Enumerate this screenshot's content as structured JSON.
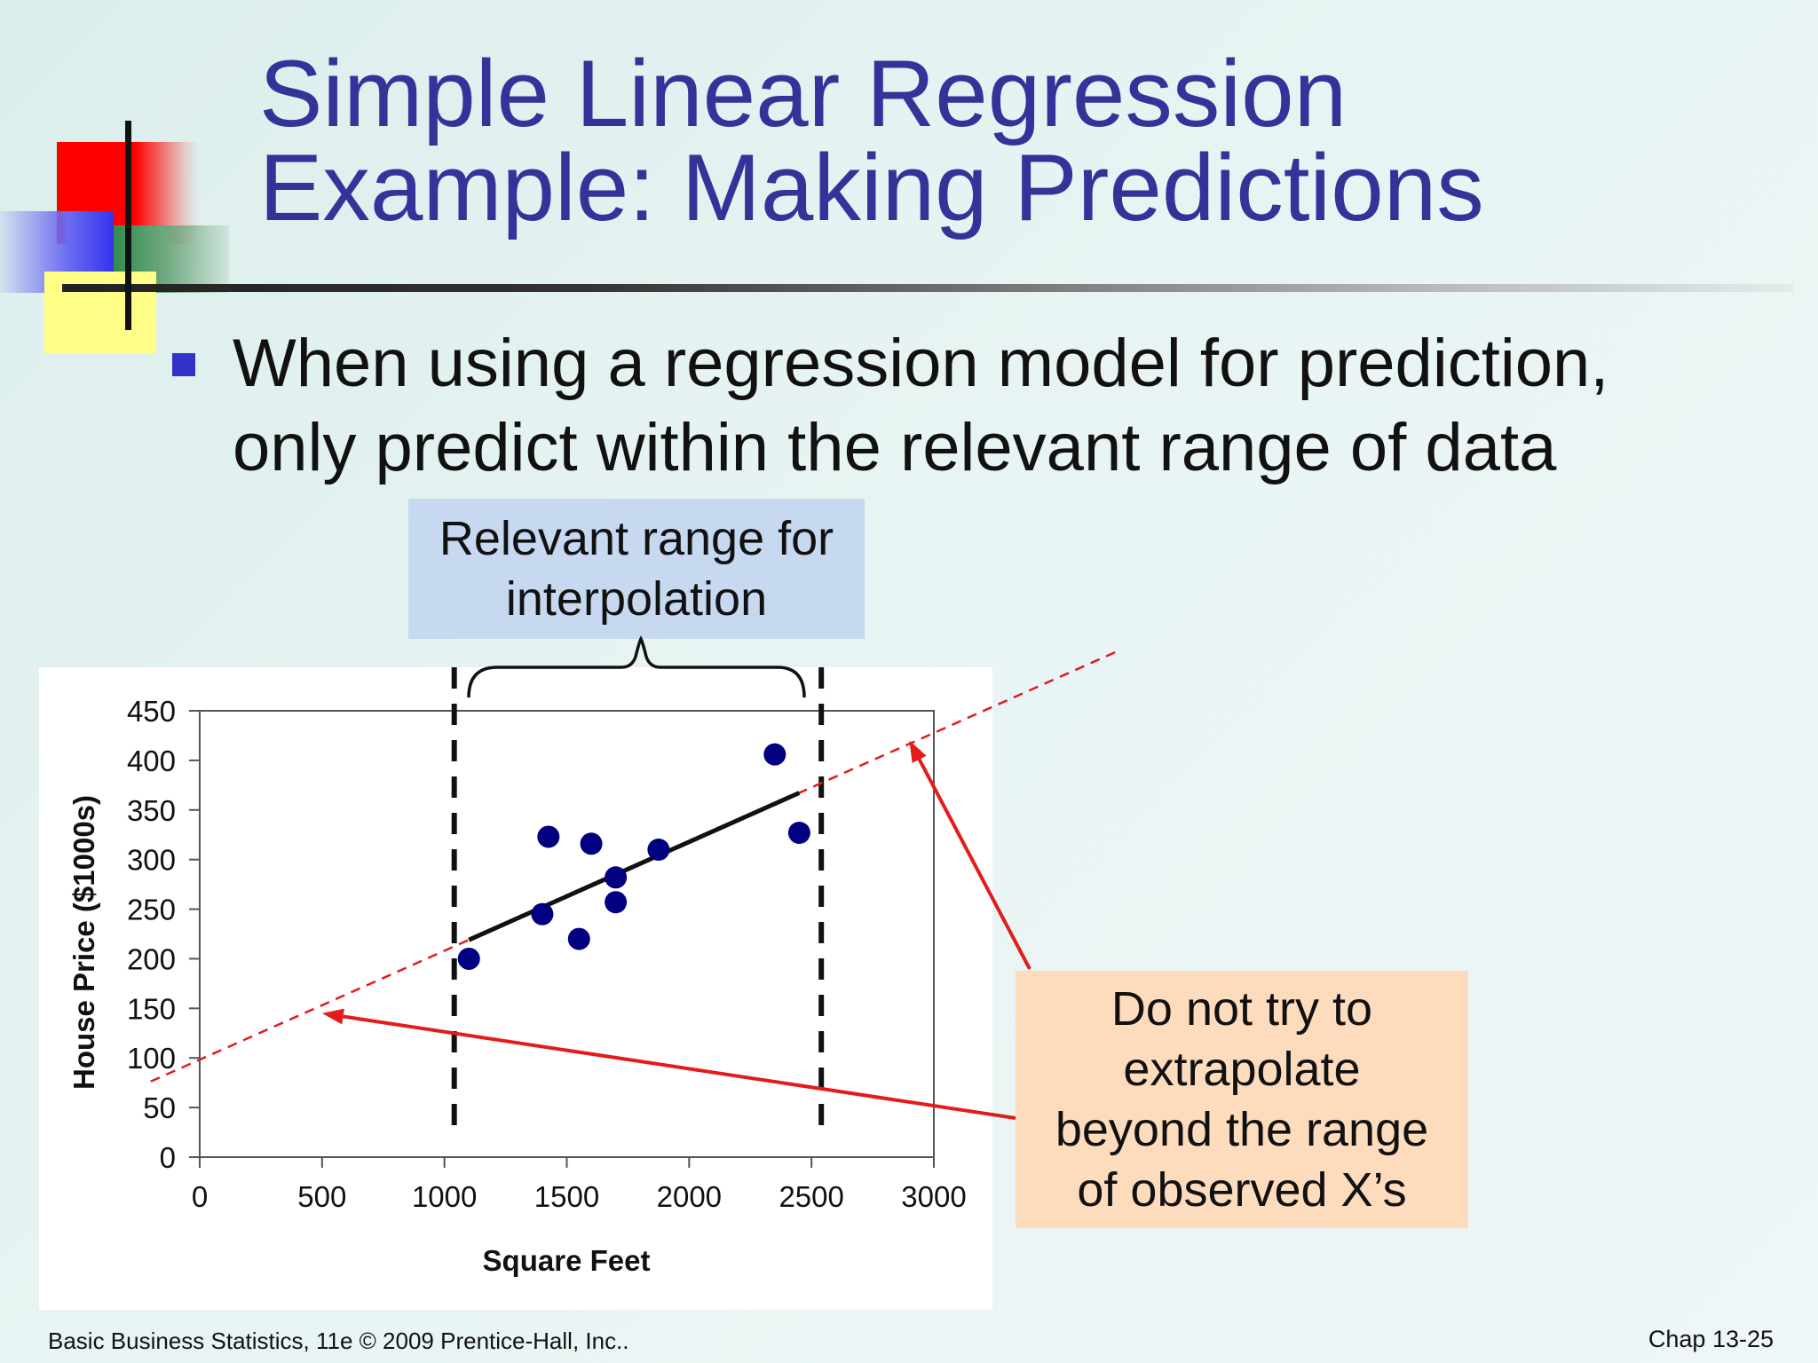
{
  "slide": {
    "title_line1": "Simple Linear Regression",
    "title_line2": "Example:  Making Predictions",
    "bullet_line1": "When using a regression model for prediction,",
    "bullet_line2": "only predict within the relevant range of data",
    "footer_left": "Basic Business Statistics, 11e © 2009 Prentice-Hall, Inc..",
    "footer_right": "Chap 13-25"
  },
  "callouts": {
    "relevant_range_line1": "Relevant range for",
    "relevant_range_line2": "interpolation",
    "extrapolate_line1": "Do not try to",
    "extrapolate_line2": "extrapolate",
    "extrapolate_line3": "beyond the range",
    "extrapolate_line4": "of observed X’s"
  },
  "colors": {
    "title": "#333399",
    "points": "#000080",
    "arrow": "#e31b1b",
    "dashed_extension": "#e31b1b",
    "range_box": "#c6d9f1",
    "warn_box": "#fcdcbc"
  },
  "chart_data": {
    "type": "scatter",
    "xlabel": "Square Feet",
    "ylabel": "House Price ($1000s)",
    "xlim": [
      0,
      3000
    ],
    "ylim": [
      0,
      450
    ],
    "xticks": [
      0,
      500,
      1000,
      1500,
      2000,
      2500,
      3000
    ],
    "yticks": [
      0,
      50,
      100,
      150,
      200,
      250,
      300,
      350,
      400,
      450
    ],
    "points": [
      {
        "x": 1100,
        "y": 200
      },
      {
        "x": 1400,
        "y": 245
      },
      {
        "x": 1425,
        "y": 323
      },
      {
        "x": 1550,
        "y": 220
      },
      {
        "x": 1600,
        "y": 316
      },
      {
        "x": 1700,
        "y": 282
      },
      {
        "x": 1700,
        "y": 257
      },
      {
        "x": 1875,
        "y": 310
      },
      {
        "x": 2350,
        "y": 406
      },
      {
        "x": 2450,
        "y": 327
      }
    ],
    "regression": {
      "intercept": 98.25,
      "slope": 0.1098
    },
    "regression_solid_x": [
      1100,
      2450
    ],
    "regression_dashed_x": [
      -200,
      3750
    ],
    "relevant_range_x": [
      1040,
      2540
    ],
    "arrow_targets": [
      {
        "x": 500,
        "y": 145
      },
      {
        "x": 2900,
        "y": 420
      }
    ]
  }
}
